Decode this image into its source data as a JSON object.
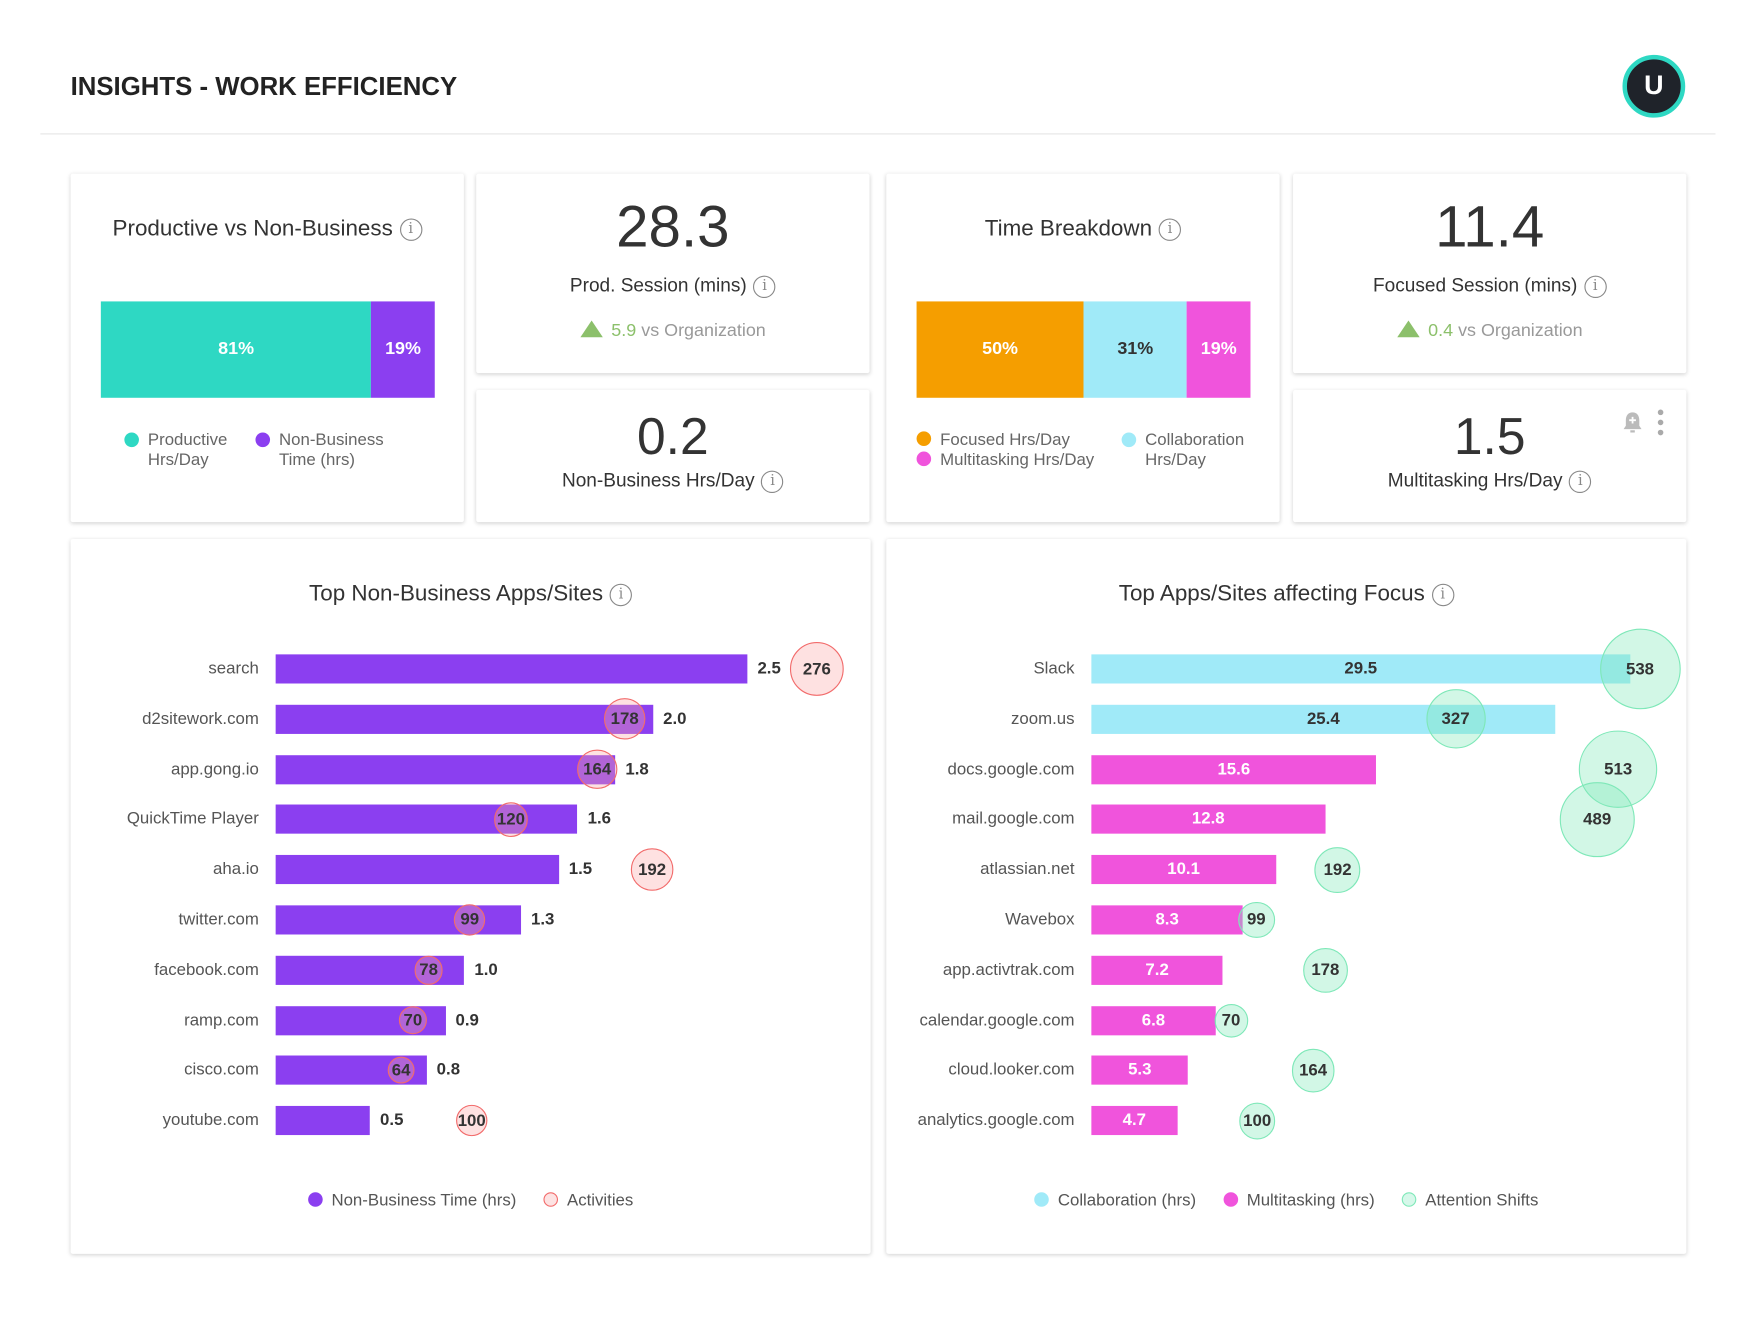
{
  "header": {
    "title": "INSIGHTS - WORK EFFICIENCY",
    "avatar_initial": "U"
  },
  "colors": {
    "productive": "#2ed8c3",
    "non_business": "#8b3ff0",
    "focused": "#f59e00",
    "collaboration": "#a0eaf8",
    "multitasking": "#f054dc",
    "activities": "#f26b6b",
    "attention": "#7ee8b8",
    "positive": "#8cc06b"
  },
  "productive_card": {
    "title": "Productive vs Non-Business",
    "segments": [
      {
        "label": "81%",
        "value": 81,
        "color": "#2ed8c3"
      },
      {
        "label": "19%",
        "value": 19,
        "color": "#8b3ff0"
      }
    ],
    "legend": [
      {
        "label": "Productive Hrs/Day",
        "color": "#2ed8c3"
      },
      {
        "label": "Non-Business Time (hrs)",
        "color": "#8b3ff0"
      }
    ]
  },
  "prod_session": {
    "value": "28.3",
    "label": "Prod. Session (mins)",
    "delta": "5.9",
    "compare": "vs Organization"
  },
  "non_business": {
    "value": "0.2",
    "label": "Non-Business Hrs/Day"
  },
  "time_breakdown": {
    "title": "Time Breakdown",
    "segments": [
      {
        "label": "50%",
        "value": 50,
        "color": "#f59e00"
      },
      {
        "label": "31%",
        "value": 31,
        "color": "#a0eaf8"
      },
      {
        "label": "19%",
        "value": 19,
        "color": "#f054dc"
      }
    ],
    "legend": [
      {
        "label": "Focused Hrs/Day",
        "color": "#f59e00"
      },
      {
        "label": "Collaboration Hrs/Day",
        "color": "#a0eaf8"
      },
      {
        "label": "Multitasking Hrs/Day",
        "color": "#f054dc"
      }
    ]
  },
  "focused_session": {
    "value": "11.4",
    "label": "Focused Session (mins)",
    "delta": "0.4",
    "compare": "vs Organization"
  },
  "multitasking": {
    "value": "1.5",
    "label": "Multitasking Hrs/Day",
    "icons": [
      "bell-plus-icon",
      "more-vertical-icon"
    ]
  },
  "chart_data": [
    {
      "type": "bar",
      "title": "Top Non-Business Apps/Sites",
      "categories": [
        "search",
        "d2sitework.com",
        "app.gong.io",
        "QuickTime Player",
        "aha.io",
        "twitter.com",
        "facebook.com",
        "ramp.com",
        "cisco.com",
        "youtube.com"
      ],
      "series": [
        {
          "name": "Non-Business Time (hrs)",
          "values": [
            2.5,
            2.0,
            1.8,
            1.6,
            1.5,
            1.3,
            1.0,
            0.9,
            0.8,
            0.5
          ],
          "color": "#8b3ff0"
        },
        {
          "name": "Activities",
          "type": "bubble",
          "values": [
            276,
            178,
            164,
            120,
            192,
            99,
            78,
            70,
            64,
            100
          ],
          "color": "#f26b6b"
        }
      ],
      "legend": "bottom"
    },
    {
      "type": "bar",
      "title": "Top Apps/Sites affecting Focus",
      "categories": [
        "Slack",
        "zoom.us",
        "docs.google.com",
        "mail.google.com",
        "atlassian.net",
        "Wavebox",
        "app.activtrak.com",
        "calendar.google.com",
        "cloud.looker.com",
        "analytics.google.com"
      ],
      "series": [
        {
          "name": "Collaboration (hrs)",
          "values": [
            29.5,
            25.4,
            null,
            null,
            null,
            null,
            null,
            null,
            null,
            null
          ],
          "color": "#a0eaf8"
        },
        {
          "name": "Multitasking (hrs)",
          "values": [
            null,
            null,
            15.6,
            12.8,
            10.1,
            8.3,
            7.2,
            6.8,
            5.3,
            4.7
          ],
          "color": "#f054dc"
        },
        {
          "name": "Attention Shifts",
          "type": "bubble",
          "values": [
            538,
            327,
            513,
            489,
            192,
            99,
            178,
            70,
            164,
            100
          ],
          "color": "#7ee8b8"
        }
      ],
      "legend": "bottom"
    }
  ]
}
